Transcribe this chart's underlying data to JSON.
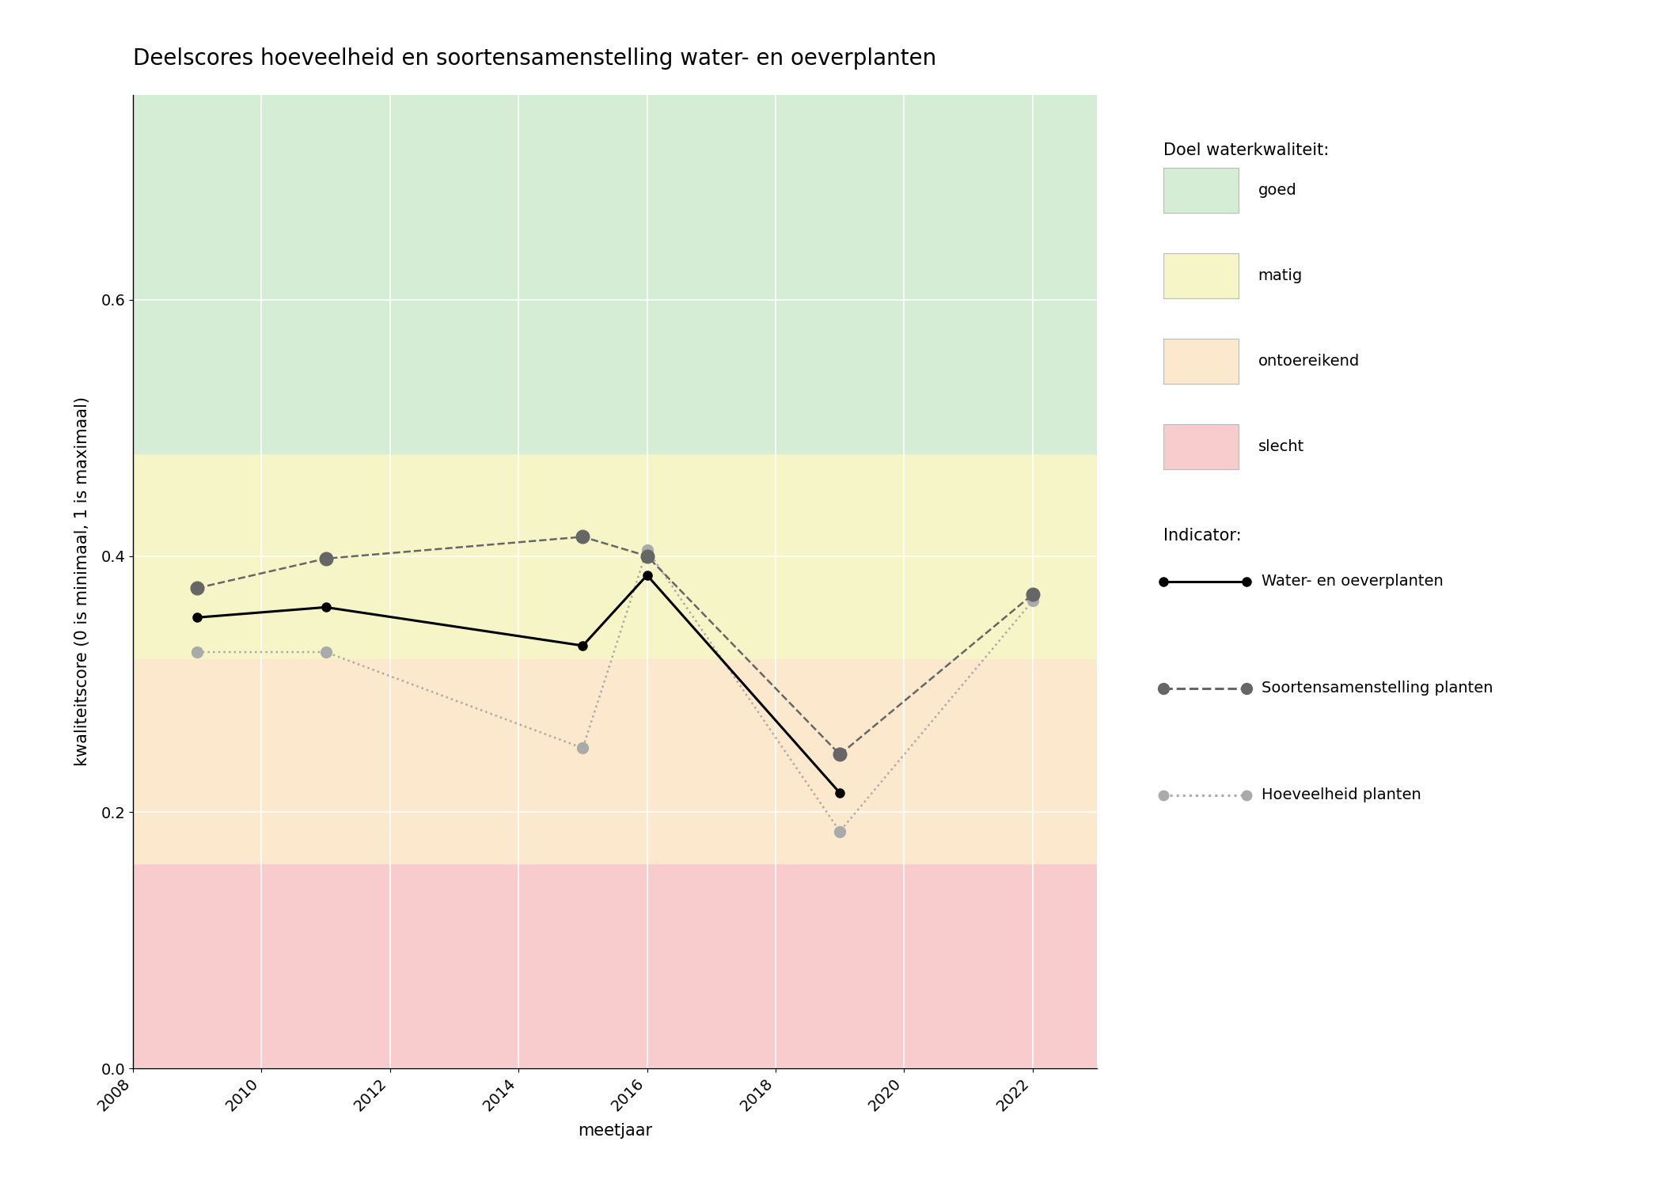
{
  "title": "Deelscores hoeveelheid en soortensamenstelling water- en oeverplanten",
  "xlabel": "meetjaar",
  "ylabel": "kwaliteitscore (0 is minimaal, 1 is maximaal)",
  "xlim": [
    2008,
    2023
  ],
  "ylim": [
    0.0,
    0.76
  ],
  "yticks": [
    0.0,
    0.2,
    0.4,
    0.6
  ],
  "xticks": [
    2008,
    2010,
    2012,
    2014,
    2016,
    2018,
    2020,
    2022
  ],
  "bg_colors": {
    "goed": "#d5ecd5",
    "matig": "#f5f5c8",
    "ontoereikend": "#fce8cc",
    "slecht": "#f8cccc"
  },
  "bg_thresholds": {
    "slecht_max": 0.16,
    "ontoereikend_max": 0.32,
    "matig_max": 0.48,
    "goed_max": 0.76
  },
  "water_oeverplanten": {
    "years": [
      2009,
      2011,
      2015,
      2016,
      2019
    ],
    "values": [
      0.352,
      0.36,
      0.33,
      0.385,
      0.215
    ],
    "color": "#000000",
    "linestyle": "-",
    "linewidth": 2.2,
    "marker": "o",
    "markersize": 8,
    "zorder": 5
  },
  "soortensamenstelling": {
    "years": [
      2009,
      2011,
      2015,
      2016,
      2019,
      2022
    ],
    "values": [
      0.375,
      0.398,
      0.415,
      0.4,
      0.245,
      0.37
    ],
    "color": "#666666",
    "linestyle": "--",
    "linewidth": 1.8,
    "marker": "o",
    "markersize": 12,
    "zorder": 4
  },
  "hoeveelheid": {
    "years": [
      2009,
      2011,
      2015,
      2016,
      2019,
      2022
    ],
    "values": [
      0.325,
      0.325,
      0.25,
      0.405,
      0.185,
      0.365
    ],
    "color": "#aaaaaa",
    "linestyle": ":",
    "linewidth": 1.8,
    "marker": "o",
    "markersize": 10,
    "zorder": 3
  },
  "legend_doel_title": "Doel waterkwaliteit:",
  "legend_indicator_title": "Indicator:",
  "legend_doel_items": [
    {
      "label": "goed",
      "color": "#d5ecd5"
    },
    {
      "label": "matig",
      "color": "#f5f5c8"
    },
    {
      "label": "ontoereikend",
      "color": "#fce8cc"
    },
    {
      "label": "slecht",
      "color": "#f8cccc"
    }
  ],
  "legend_indicator_items": [
    {
      "label": "Water- en oeverplanten",
      "color": "#000000",
      "linestyle": "-",
      "marker": "o",
      "markersize": 8
    },
    {
      "label": "Soortensamenstelling planten",
      "color": "#666666",
      "linestyle": "--",
      "marker": "o",
      "markersize": 10
    },
    {
      "label": "Hoeveelheid planten",
      "color": "#aaaaaa",
      "linestyle": ":",
      "marker": "o",
      "markersize": 9
    }
  ],
  "background_color": "#ffffff",
  "grid_color": "#ffffff",
  "title_fontsize": 20,
  "axis_label_fontsize": 15,
  "tick_fontsize": 14,
  "legend_fontsize": 14
}
